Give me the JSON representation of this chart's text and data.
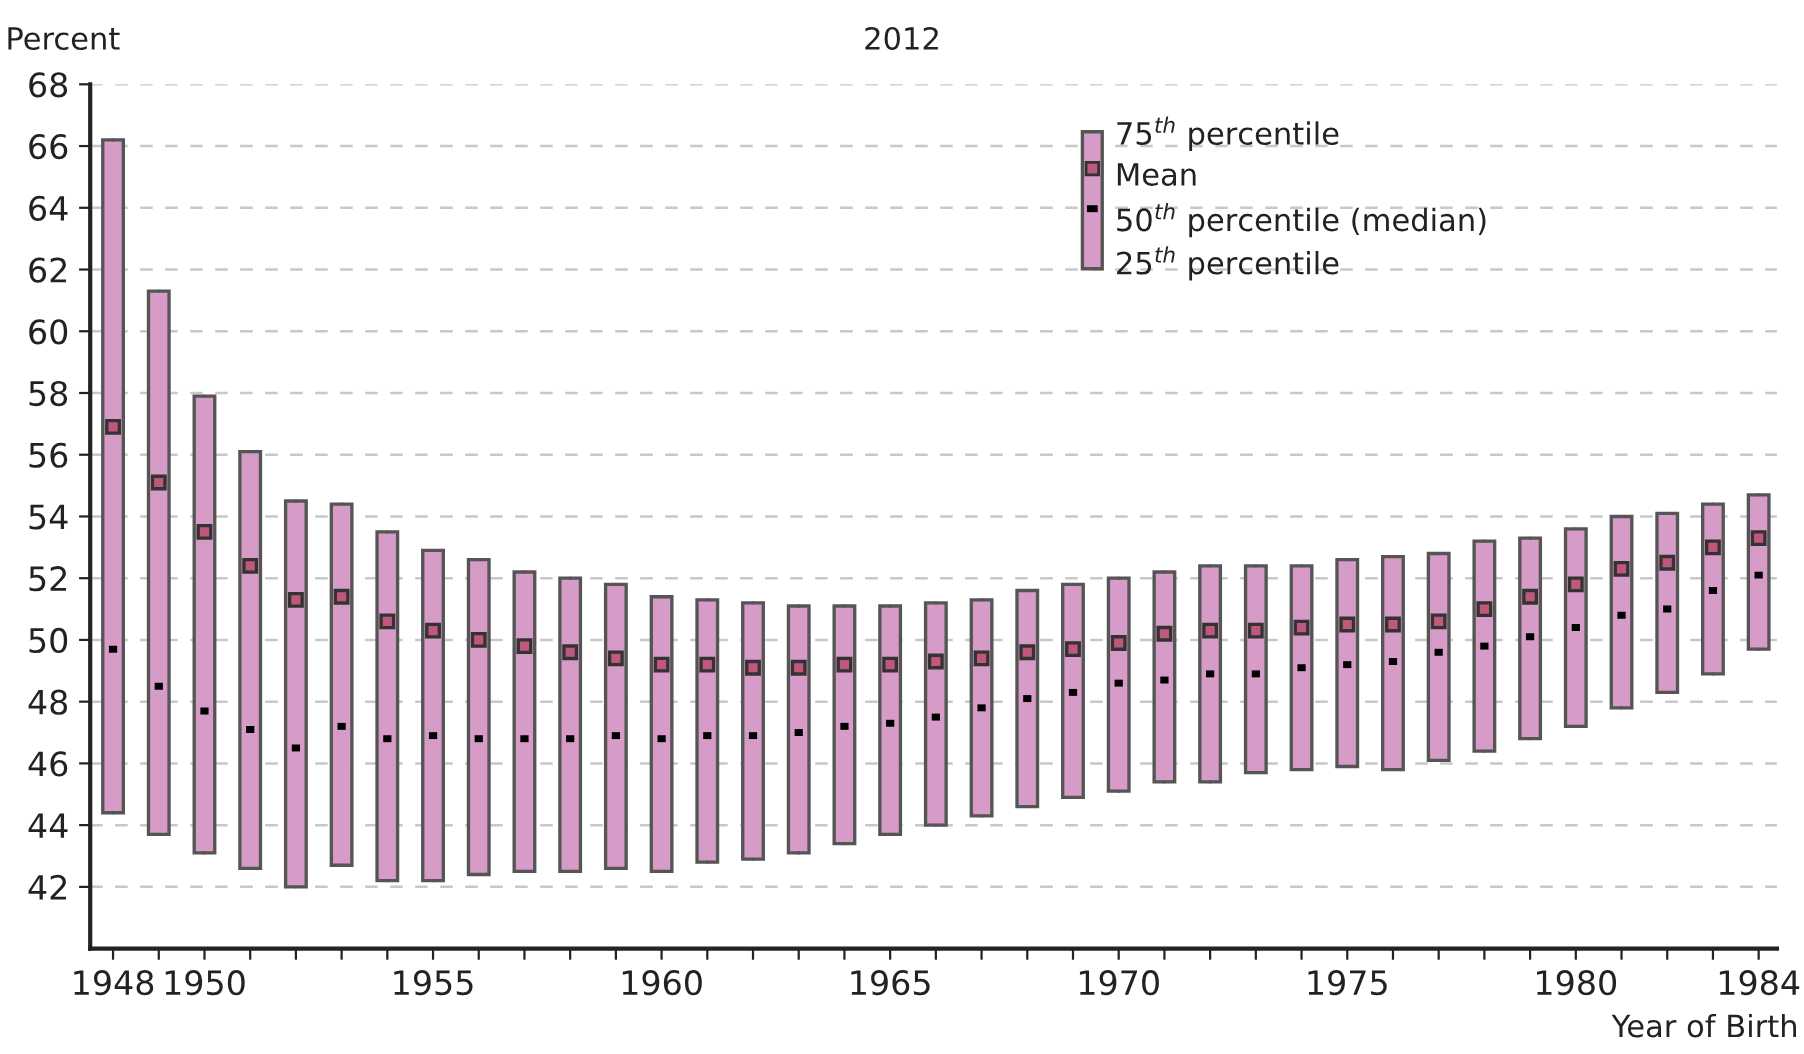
{
  "chart_data": {
    "type": "box",
    "title": "2012",
    "ylabel": "Percent",
    "xlabel": "Year of Birth",
    "x": [
      1948,
      1949,
      1950,
      1951,
      1952,
      1953,
      1954,
      1955,
      1956,
      1957,
      1958,
      1959,
      1960,
      1961,
      1962,
      1963,
      1964,
      1965,
      1966,
      1967,
      1968,
      1969,
      1970,
      1971,
      1972,
      1973,
      1974,
      1975,
      1976,
      1977,
      1978,
      1979,
      1980,
      1981,
      1982,
      1983,
      1984
    ],
    "color": "#d69bc6",
    "boxes": [
      {
        "low": 44.4,
        "q1": 44.4,
        "median": 49.7,
        "q3": 66.2,
        "high": 66.2,
        "mean": 56.9
      },
      {
        "low": 43.7,
        "q1": 43.7,
        "median": 48.5,
        "q3": 61.3,
        "high": 61.3,
        "mean": 55.1
      },
      {
        "low": 43.1,
        "q1": 43.1,
        "median": 47.7,
        "q3": 57.9,
        "high": 57.9,
        "mean": 53.5
      },
      {
        "low": 42.6,
        "q1": 42.6,
        "median": 47.1,
        "q3": 56.1,
        "high": 56.1,
        "mean": 52.4
      },
      {
        "low": 42.0,
        "q1": 42.0,
        "median": 46.5,
        "q3": 54.5,
        "high": 54.5,
        "mean": 51.3
      },
      {
        "low": 42.7,
        "q1": 42.7,
        "median": 47.2,
        "q3": 54.4,
        "high": 54.4,
        "mean": 51.4
      },
      {
        "low": 42.2,
        "q1": 42.2,
        "median": 46.8,
        "q3": 53.5,
        "high": 53.5,
        "mean": 50.6
      },
      {
        "low": 42.2,
        "q1": 42.2,
        "median": 46.9,
        "q3": 52.9,
        "high": 52.9,
        "mean": 50.3
      },
      {
        "low": 42.4,
        "q1": 42.4,
        "median": 46.8,
        "q3": 52.6,
        "high": 52.6,
        "mean": 50.0
      },
      {
        "low": 42.5,
        "q1": 42.5,
        "median": 46.8,
        "q3": 52.2,
        "high": 52.2,
        "mean": 49.8
      },
      {
        "low": 42.5,
        "q1": 42.5,
        "median": 46.8,
        "q3": 52.0,
        "high": 52.0,
        "mean": 49.6
      },
      {
        "low": 42.6,
        "q1": 42.6,
        "median": 46.9,
        "q3": 51.8,
        "high": 51.8,
        "mean": 49.4
      },
      {
        "low": 42.5,
        "q1": 42.5,
        "median": 46.8,
        "q3": 51.4,
        "high": 51.4,
        "mean": 49.2
      },
      {
        "low": 42.8,
        "q1": 42.8,
        "median": 46.9,
        "q3": 51.3,
        "high": 51.3,
        "mean": 49.2
      },
      {
        "low": 42.9,
        "q1": 42.9,
        "median": 46.9,
        "q3": 51.2,
        "high": 51.2,
        "mean": 49.1
      },
      {
        "low": 43.1,
        "q1": 43.1,
        "median": 47.0,
        "q3": 51.1,
        "high": 51.1,
        "mean": 49.1
      },
      {
        "low": 43.4,
        "q1": 43.4,
        "median": 47.2,
        "q3": 51.1,
        "high": 51.1,
        "mean": 49.2
      },
      {
        "low": 43.7,
        "q1": 43.7,
        "median": 47.3,
        "q3": 51.1,
        "high": 51.1,
        "mean": 49.2
      },
      {
        "low": 44.0,
        "q1": 44.0,
        "median": 47.5,
        "q3": 51.2,
        "high": 51.2,
        "mean": 49.3
      },
      {
        "low": 44.3,
        "q1": 44.3,
        "median": 47.8,
        "q3": 51.3,
        "high": 51.3,
        "mean": 49.4
      },
      {
        "low": 44.6,
        "q1": 44.6,
        "median": 48.1,
        "q3": 51.6,
        "high": 51.6,
        "mean": 49.6
      },
      {
        "low": 44.9,
        "q1": 44.9,
        "median": 48.3,
        "q3": 51.8,
        "high": 51.8,
        "mean": 49.7
      },
      {
        "low": 45.1,
        "q1": 45.1,
        "median": 48.6,
        "q3": 52.0,
        "high": 52.0,
        "mean": 49.9
      },
      {
        "low": 45.4,
        "q1": 45.4,
        "median": 48.7,
        "q3": 52.2,
        "high": 52.2,
        "mean": 50.2
      },
      {
        "low": 45.4,
        "q1": 45.4,
        "median": 48.9,
        "q3": 52.4,
        "high": 52.4,
        "mean": 50.3
      },
      {
        "low": 45.7,
        "q1": 45.7,
        "median": 48.9,
        "q3": 52.4,
        "high": 52.4,
        "mean": 50.3
      },
      {
        "low": 45.8,
        "q1": 45.8,
        "median": 49.1,
        "q3": 52.4,
        "high": 52.4,
        "mean": 50.4
      },
      {
        "low": 45.9,
        "q1": 45.9,
        "median": 49.2,
        "q3": 52.6,
        "high": 52.6,
        "mean": 50.5
      },
      {
        "low": 45.8,
        "q1": 45.8,
        "median": 49.3,
        "q3": 52.7,
        "high": 52.7,
        "mean": 50.5
      },
      {
        "low": 46.1,
        "q1": 46.1,
        "median": 49.6,
        "q3": 52.8,
        "high": 52.8,
        "mean": 50.6
      },
      {
        "low": 46.4,
        "q1": 46.4,
        "median": 49.8,
        "q3": 53.2,
        "high": 53.2,
        "mean": 51.0
      },
      {
        "low": 46.8,
        "q1": 46.8,
        "median": 50.1,
        "q3": 53.3,
        "high": 53.3,
        "mean": 51.4
      },
      {
        "low": 47.2,
        "q1": 47.2,
        "median": 50.4,
        "q3": 53.6,
        "high": 53.6,
        "mean": 51.8
      },
      {
        "low": 47.8,
        "q1": 47.8,
        "median": 50.8,
        "q3": 54.0,
        "high": 54.0,
        "mean": 52.3
      },
      {
        "low": 48.3,
        "q1": 48.3,
        "median": 51.0,
        "q3": 54.1,
        "high": 54.1,
        "mean": 52.5
      },
      {
        "low": 48.9,
        "q1": 48.9,
        "median": 51.6,
        "q3": 54.4,
        "high": 54.4,
        "mean": 53.0
      },
      {
        "low": 49.7,
        "q1": 49.7,
        "median": 52.1,
        "q3": 54.7,
        "high": 54.7,
        "mean": 53.3
      }
    ],
    "xlim": [
      1947.5,
      1984.4
    ],
    "xticks": [
      1948,
      {
        "value": 1949,
        "label": null
      },
      1950,
      {
        "value": 1951,
        "label": null
      },
      {
        "value": 1952,
        "label": null
      },
      {
        "value": 1953,
        "label": null
      },
      {
        "value": 1954,
        "label": null
      },
      1955,
      {
        "value": 1956,
        "label": null
      },
      {
        "value": 1957,
        "label": null
      },
      {
        "value": 1958,
        "label": null
      },
      {
        "value": 1959,
        "label": null
      },
      1960,
      {
        "value": 1961,
        "label": null
      },
      {
        "value": 1962,
        "label": null
      },
      {
        "value": 1963,
        "label": null
      },
      {
        "value": 1964,
        "label": null
      },
      1965,
      {
        "value": 1966,
        "label": null
      },
      {
        "value": 1967,
        "label": null
      },
      {
        "value": 1968,
        "label": null
      },
      {
        "value": 1969,
        "label": null
      },
      1970,
      {
        "value": 1971,
        "label": null
      },
      {
        "value": 1972,
        "label": null
      },
      {
        "value": 1973,
        "label": null
      },
      {
        "value": 1974,
        "label": null
      },
      1975,
      {
        "value": 1976,
        "label": null
      },
      {
        "value": 1977,
        "label": null
      },
      {
        "value": 1978,
        "label": null
      },
      {
        "value": 1979,
        "label": null
      },
      1980,
      {
        "value": 1981,
        "label": null
      },
      {
        "value": 1982,
        "label": null
      },
      {
        "value": 1983,
        "label": null
      },
      1984
    ],
    "ylim": [
      40,
      68
    ],
    "yticks": [
      42,
      44,
      46,
      48,
      50,
      52,
      54,
      56,
      58,
      60,
      62,
      64,
      66,
      68
    ],
    "grid": "y",
    "annotations": [
      "75$^{th}$ percentile",
      "Mean",
      "50$^{th}$ percentile (median)",
      "25$^{th}$ percentile"
    ]
  }
}
